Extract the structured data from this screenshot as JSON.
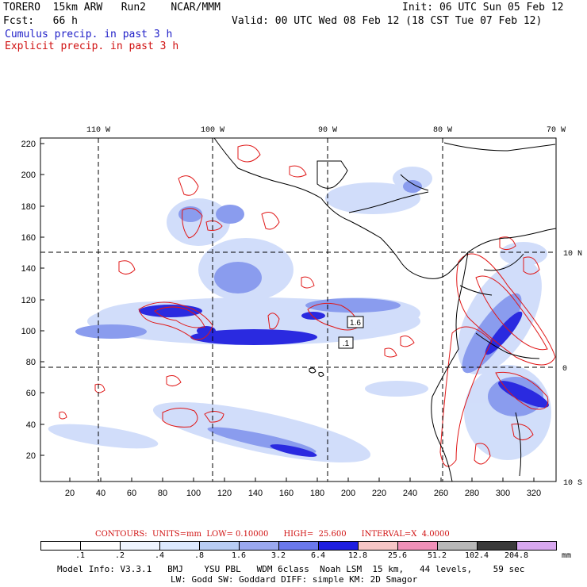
{
  "header": {
    "model": "TORERO  15km ARW   Run2    NCAR/MMM",
    "init": "Init: 06 UTC Sun 05 Feb 12",
    "fcst": "Fcst:   66 h",
    "valid": "Valid: 00 UTC Wed 08 Feb 12 (18 CST Tue 07 Feb 12)",
    "legend_cumulus": "Cumulus precip. in past 3 h",
    "legend_explicit": "Explicit precip. in past 3 h"
  },
  "map": {
    "lon_labels": [
      "110 W",
      "100 W",
      "90 W",
      "80 W",
      "70 W"
    ],
    "lat_labels": [
      "10 N",
      "0",
      "10 S"
    ],
    "y_ticks": [
      "220",
      "200",
      "180",
      "160",
      "140",
      "120",
      "100",
      "80",
      "60",
      "40",
      "20"
    ],
    "x_ticks": [
      "20",
      "40",
      "60",
      "80",
      "100",
      "120",
      "140",
      "160",
      "180",
      "200",
      "220",
      "240",
      "260",
      "280",
      "300",
      "320"
    ],
    "box_labels": [
      "1.6",
      ".1"
    ]
  },
  "contours": {
    "text": "CONTOURS:  UNITS=mm  LOW= 0.10000      HIGH=  25.600      INTERVAL=X  4.0000"
  },
  "scale": {
    "labels": [
      ".1",
      ".2",
      ".4",
      ".8",
      "1.6",
      "3.2",
      "6.4",
      "12.8",
      "25.6",
      "51.2",
      "102.4",
      "204.8"
    ],
    "unit": "mm",
    "colors": [
      "#ffffff",
      "#ffffff",
      "#eef4ff",
      "#dce9ff",
      "#b8ccf4",
      "#9aa8f0",
      "#6a78ec",
      "#1e1ee0",
      "#f7c6c6",
      "#f090b8",
      "#b8b8b8",
      "#3a3a3a",
      "#d8a8f0"
    ]
  },
  "footer": {
    "line1": "Model Info: V3.3.1   BMJ    YSU PBL   WDM 6class  Noah LSM  15 km,   44 levels,    59 sec",
    "line2": "LW: Godd SW: Goddard DIFF: simple KM: 2D Smagor"
  }
}
